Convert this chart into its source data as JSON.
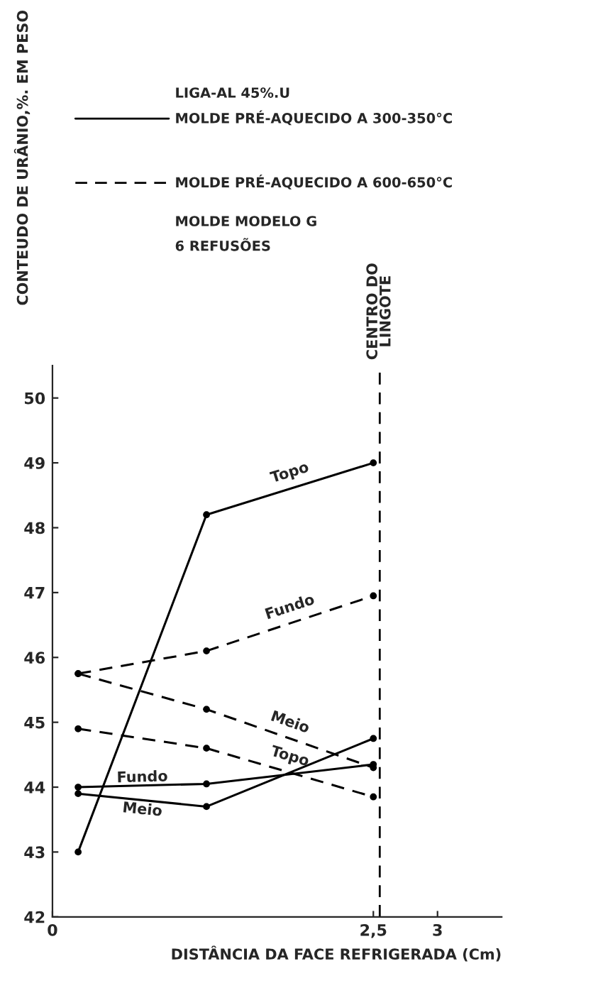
{
  "chart_data": {
    "type": "line",
    "xlabel": "DISTÂNCIA DA FACE REFRIGERADA (Cm)",
    "ylabel": "CONTEUDO DE URÂNIO,%. EM PESO",
    "x": [
      0.2,
      1.2,
      2.5
    ],
    "series": [
      {
        "name": "Topo",
        "color": "#000000",
        "line_style": "solid",
        "values": [
          43.0,
          48.2,
          49.0
        ]
      },
      {
        "name": "Fundo",
        "color": "#000000",
        "line_style": "solid",
        "values": [
          44.0,
          44.05,
          44.35
        ]
      },
      {
        "name": "Meio",
        "color": "#000000",
        "line_style": "solid",
        "values": [
          43.9,
          43.7,
          44.75
        ]
      },
      {
        "name": "Fundo",
        "color": "#000000",
        "line_style": "dashed",
        "values": [
          45.75,
          46.1,
          46.95
        ]
      },
      {
        "name": "Meio",
        "color": "#000000",
        "line_style": "dashed",
        "values": [
          45.75,
          45.2,
          44.3
        ]
      },
      {
        "name": "Topo",
        "color": "#000000",
        "line_style": "dashed",
        "values": [
          44.9,
          44.6,
          43.85
        ]
      }
    ],
    "xlim": [
      0,
      3.5
    ],
    "ylim": [
      42,
      50.5
    ],
    "xticks": [
      0,
      {
        "value": 2.5,
        "label": "2,5"
      },
      3
    ],
    "yticks": [
      42,
      43,
      44,
      45,
      46,
      47,
      48,
      49,
      50
    ],
    "marker": "circle",
    "grid": false,
    "legend": false,
    "ref_lines": [
      {
        "axis": "x",
        "value": 2.55,
        "label": "CENTRO DO LINGOTE",
        "line_style": "dashed",
        "color": "#000000"
      }
    ],
    "annotations": [
      "LIGA-AL 45%.U",
      "MOLDE PRÉ-AQUECIDO A 300-350°C",
      "MOLDE PRÉ-AQUECIDO A 600-650°C",
      "MOLDE MODELO G",
      "6 REFUSÕES"
    ]
  }
}
